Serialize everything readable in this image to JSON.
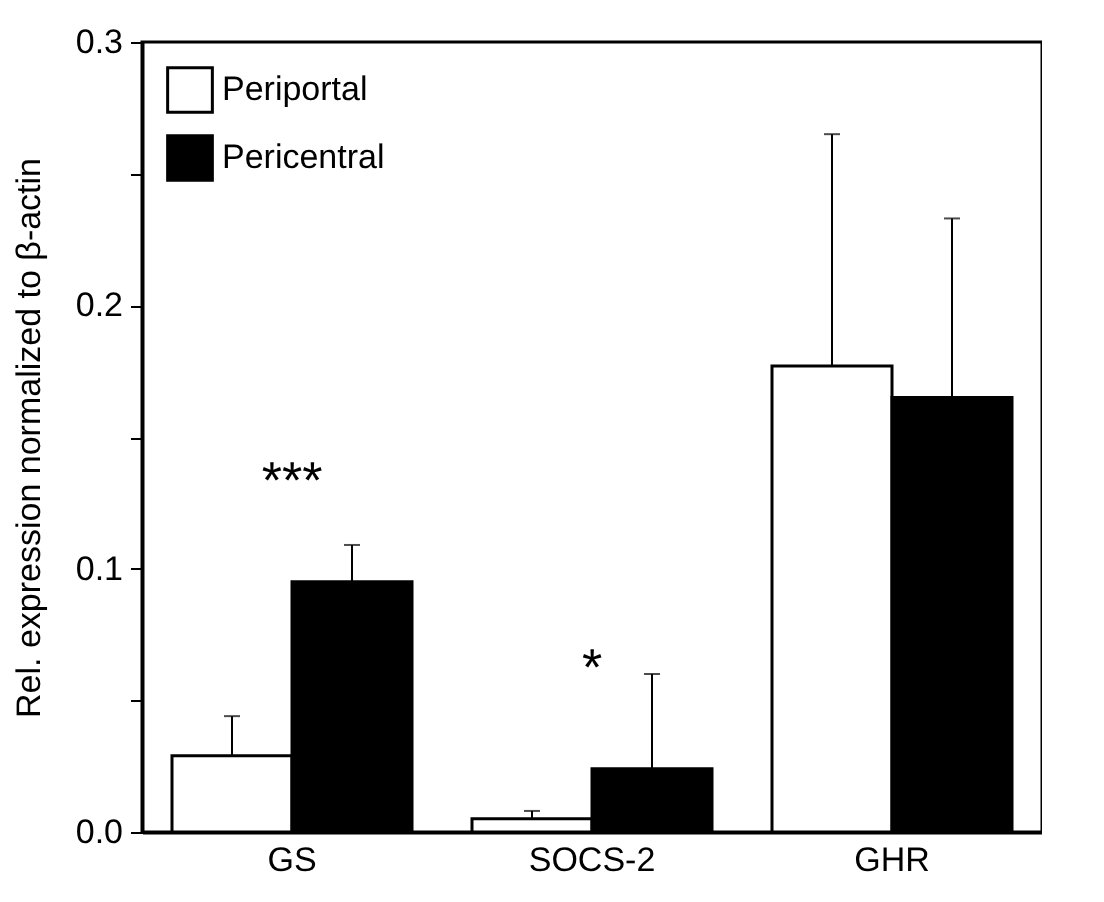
{
  "chart_data": {
    "type": "bar",
    "ylabel": "Rel. expression normalized to β-actin",
    "categories": [
      "GS",
      "SOCS-2",
      "GHR"
    ],
    "series": [
      {
        "name": "Periportal",
        "color": "#ffffff",
        "values": [
          0.029,
          0.005,
          0.177
        ],
        "errors": [
          [
            0.029,
            0.044
          ],
          [
            0.005,
            0.008
          ],
          [
            0.177,
            0.265
          ]
        ]
      },
      {
        "name": "Pericentral",
        "color": "#000000",
        "values": [
          0.095,
          0.024,
          0.165
        ],
        "errors": [
          [
            0.095,
            0.109
          ],
          [
            0.024,
            0.06
          ],
          [
            0.165,
            0.233
          ]
        ]
      }
    ],
    "ylim": [
      0,
      0.3
    ],
    "yticks": [
      {
        "value": 0,
        "label": "0.0"
      },
      {
        "value": 0.05,
        "label": null
      },
      0.1,
      {
        "value": 0.15,
        "label": null
      },
      0.2,
      {
        "value": 0.25,
        "label": null
      },
      0.3
    ],
    "annotations": [
      "***",
      "*"
    ],
    "legend": "top left",
    "grid": false
  }
}
